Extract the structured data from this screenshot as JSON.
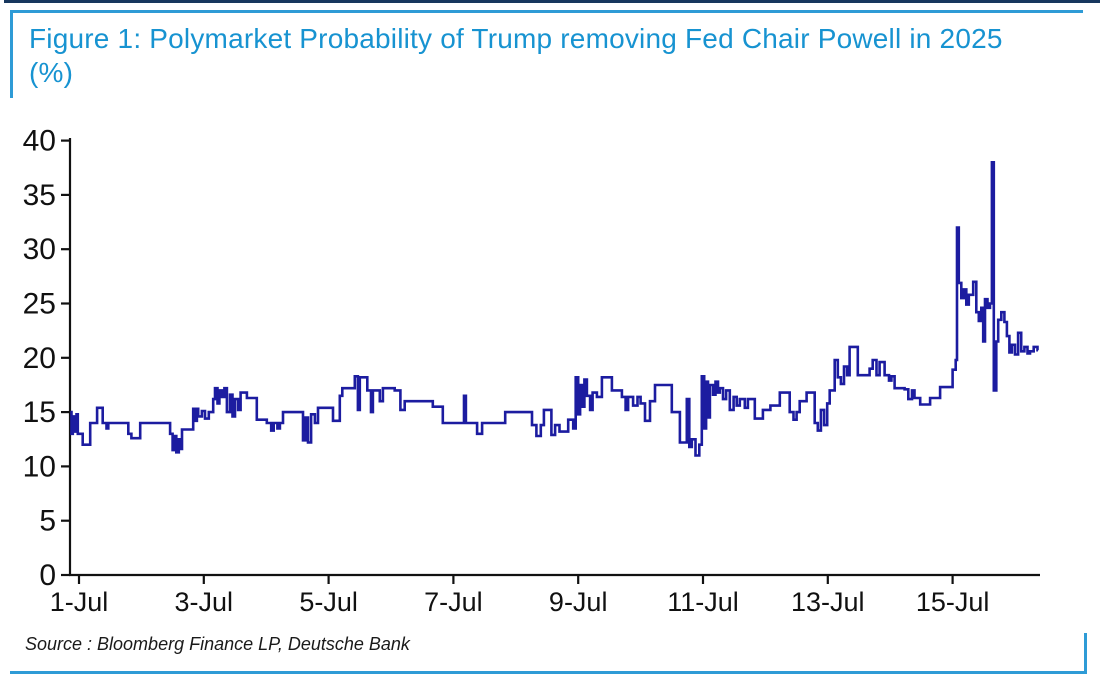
{
  "page": {
    "top_rule_color": "#17375e",
    "accent_rule_color": "#2e9bd6"
  },
  "figure": {
    "title_line1": "Figure 1: Polymarket Probability of Trump removing Fed Chair Powell in 2025",
    "title_line2": "(%)",
    "title_color": "#1793d1",
    "source_text": "Source : Bloomberg Finance LP, Deutsche Bank"
  },
  "chart_data": {
    "type": "line",
    "title": "Polymarket Probability of Trump removing Fed Chair Powell in 2025 (%)",
    "xlabel": "",
    "ylabel": "%",
    "grid": false,
    "legend": false,
    "line_color": "#1c1ca0",
    "axis_color": "#111111",
    "ylim": [
      0,
      40
    ],
    "xlim_days": [
      0.86,
      16.45
    ],
    "y_ticks": [
      0,
      5,
      10,
      15,
      20,
      25,
      30,
      35,
      40
    ],
    "x_tick_days": [
      1,
      3,
      5,
      7,
      9,
      11,
      13,
      15
    ],
    "x_tick_labels": [
      "1-Jul",
      "3-Jul",
      "5-Jul",
      "7-Jul",
      "9-Jul",
      "11-Jul",
      "13-Jul",
      "15-Jul"
    ],
    "series": [
      {
        "name": "Polymarket probability (%)",
        "step": "after",
        "points": [
          [
            0.86,
            15.0
          ],
          [
            0.88,
            13.0
          ],
          [
            0.9,
            14.6
          ],
          [
            0.93,
            13.2
          ],
          [
            0.96,
            14.8
          ],
          [
            0.98,
            13.0
          ],
          [
            1.06,
            12.0
          ],
          [
            1.18,
            14.0
          ],
          [
            1.29,
            15.4
          ],
          [
            1.38,
            14.0
          ],
          [
            1.44,
            13.5
          ],
          [
            1.47,
            14.0
          ],
          [
            1.79,
            13.0
          ],
          [
            1.84,
            12.6
          ],
          [
            1.98,
            14.0
          ],
          [
            2.46,
            13.0
          ],
          [
            2.5,
            11.5
          ],
          [
            2.53,
            12.8
          ],
          [
            2.56,
            11.3
          ],
          [
            2.6,
            12.5
          ],
          [
            2.63,
            11.6
          ],
          [
            2.65,
            13.4
          ],
          [
            2.83,
            15.3
          ],
          [
            2.87,
            14.2
          ],
          [
            2.89,
            15.3
          ],
          [
            2.91,
            14.6
          ],
          [
            2.97,
            15.1
          ],
          [
            3.02,
            14.4
          ],
          [
            3.08,
            15.0
          ],
          [
            3.15,
            16.2
          ],
          [
            3.18,
            17.2
          ],
          [
            3.22,
            15.8
          ],
          [
            3.25,
            17.0
          ],
          [
            3.29,
            16.4
          ],
          [
            3.33,
            17.2
          ],
          [
            3.37,
            15.0
          ],
          [
            3.42,
            16.6
          ],
          [
            3.46,
            14.6
          ],
          [
            3.5,
            16.2
          ],
          [
            3.55,
            15.2
          ],
          [
            3.59,
            16.8
          ],
          [
            3.69,
            16.3
          ],
          [
            3.85,
            14.3
          ],
          [
            4.01,
            14.0
          ],
          [
            4.08,
            13.3
          ],
          [
            4.12,
            14.0
          ],
          [
            4.18,
            13.5
          ],
          [
            4.22,
            14.0
          ],
          [
            4.27,
            15.0
          ],
          [
            4.59,
            12.4
          ],
          [
            4.63,
            14.5
          ],
          [
            4.67,
            12.2
          ],
          [
            4.72,
            14.8
          ],
          [
            4.78,
            14.0
          ],
          [
            4.83,
            15.4
          ],
          [
            5.07,
            14.2
          ],
          [
            5.18,
            16.5
          ],
          [
            5.22,
            17.2
          ],
          [
            5.42,
            18.3
          ],
          [
            5.47,
            15.2
          ],
          [
            5.5,
            18.2
          ],
          [
            5.62,
            17.0
          ],
          [
            5.68,
            15.0
          ],
          [
            5.71,
            17.0
          ],
          [
            5.82,
            16.0
          ],
          [
            5.87,
            17.2
          ],
          [
            6.06,
            17.0
          ],
          [
            6.15,
            15.2
          ],
          [
            6.22,
            16.0
          ],
          [
            6.67,
            15.5
          ],
          [
            6.83,
            14.0
          ],
          [
            7.17,
            16.5
          ],
          [
            7.2,
            14.0
          ],
          [
            7.38,
            13.0
          ],
          [
            7.46,
            14.0
          ],
          [
            7.83,
            15.0
          ],
          [
            8.26,
            13.8
          ],
          [
            8.33,
            12.8
          ],
          [
            8.4,
            13.8
          ],
          [
            8.45,
            15.2
          ],
          [
            8.57,
            12.9
          ],
          [
            8.63,
            13.8
          ],
          [
            8.7,
            13.2
          ],
          [
            8.84,
            14.3
          ],
          [
            8.92,
            13.5
          ],
          [
            8.96,
            18.2
          ],
          [
            9.0,
            14.8
          ],
          [
            9.03,
            17.5
          ],
          [
            9.06,
            15.5
          ],
          [
            9.1,
            18.0
          ],
          [
            9.14,
            16.5
          ],
          [
            9.19,
            15.2
          ],
          [
            9.23,
            16.8
          ],
          [
            9.3,
            16.4
          ],
          [
            9.38,
            18.2
          ],
          [
            9.54,
            17.0
          ],
          [
            9.7,
            16.4
          ],
          [
            9.76,
            15.2
          ],
          [
            9.8,
            16.4
          ],
          [
            9.88,
            15.6
          ],
          [
            9.95,
            16.4
          ],
          [
            10.0,
            15.8
          ],
          [
            10.07,
            14.2
          ],
          [
            10.15,
            16.0
          ],
          [
            10.23,
            17.5
          ],
          [
            10.5,
            15.0
          ],
          [
            10.63,
            12.2
          ],
          [
            10.74,
            16.2
          ],
          [
            10.78,
            11.8
          ],
          [
            10.82,
            12.5
          ],
          [
            10.88,
            11.0
          ],
          [
            10.94,
            12.0
          ],
          [
            10.98,
            18.3
          ],
          [
            11.02,
            13.5
          ],
          [
            11.05,
            17.8
          ],
          [
            11.08,
            14.5
          ],
          [
            11.11,
            17.5
          ],
          [
            11.16,
            16.6
          ],
          [
            11.2,
            17.8
          ],
          [
            11.24,
            16.8
          ],
          [
            11.27,
            17.2
          ],
          [
            11.32,
            16.2
          ],
          [
            11.37,
            17.0
          ],
          [
            11.43,
            15.2
          ],
          [
            11.49,
            16.4
          ],
          [
            11.54,
            15.6
          ],
          [
            11.59,
            16.2
          ],
          [
            11.67,
            15.4
          ],
          [
            11.72,
            16.2
          ],
          [
            11.83,
            14.4
          ],
          [
            11.96,
            15.2
          ],
          [
            12.08,
            15.6
          ],
          [
            12.23,
            16.8
          ],
          [
            12.39,
            15.0
          ],
          [
            12.45,
            14.3
          ],
          [
            12.5,
            15.0
          ],
          [
            12.55,
            16.0
          ],
          [
            12.66,
            16.8
          ],
          [
            12.79,
            14.0
          ],
          [
            12.84,
            13.3
          ],
          [
            12.89,
            15.2
          ],
          [
            12.94,
            13.8
          ],
          [
            12.99,
            15.8
          ],
          [
            13.03,
            17.0
          ],
          [
            13.11,
            19.8
          ],
          [
            13.16,
            18.2
          ],
          [
            13.21,
            17.6
          ],
          [
            13.26,
            19.2
          ],
          [
            13.31,
            18.4
          ],
          [
            13.35,
            21.0
          ],
          [
            13.48,
            18.4
          ],
          [
            13.67,
            19.0
          ],
          [
            13.72,
            19.8
          ],
          [
            13.78,
            18.4
          ],
          [
            13.83,
            19.6
          ],
          [
            13.91,
            18.4
          ],
          [
            13.98,
            17.9
          ],
          [
            14.02,
            18.3
          ],
          [
            14.07,
            17.2
          ],
          [
            14.23,
            17.1
          ],
          [
            14.29,
            16.2
          ],
          [
            14.35,
            17.0
          ],
          [
            14.39,
            16.3
          ],
          [
            14.48,
            15.7
          ],
          [
            14.64,
            16.3
          ],
          [
            14.8,
            17.3
          ],
          [
            15.0,
            18.9
          ],
          [
            15.05,
            19.8
          ],
          [
            15.07,
            32.0
          ],
          [
            15.1,
            26.9
          ],
          [
            15.14,
            25.5
          ],
          [
            15.18,
            26.3
          ],
          [
            15.22,
            24.9
          ],
          [
            15.26,
            25.8
          ],
          [
            15.33,
            27.0
          ],
          [
            15.38,
            24.2
          ],
          [
            15.42,
            23.4
          ],
          [
            15.46,
            24.6
          ],
          [
            15.49,
            21.5
          ],
          [
            15.52,
            25.4
          ],
          [
            15.56,
            24.6
          ],
          [
            15.6,
            25.0
          ],
          [
            15.63,
            38.0
          ],
          [
            15.66,
            17.0
          ],
          [
            15.7,
            21.5
          ],
          [
            15.73,
            23.5
          ],
          [
            15.78,
            24.2
          ],
          [
            15.83,
            23.3
          ],
          [
            15.87,
            22.0
          ],
          [
            15.91,
            20.5
          ],
          [
            15.95,
            21.2
          ],
          [
            16.0,
            20.3
          ],
          [
            16.05,
            22.3
          ],
          [
            16.1,
            20.6
          ],
          [
            16.15,
            21.0
          ],
          [
            16.2,
            20.4
          ],
          [
            16.24,
            20.6
          ],
          [
            16.3,
            21.0
          ],
          [
            16.36,
            20.7
          ]
        ]
      }
    ]
  }
}
